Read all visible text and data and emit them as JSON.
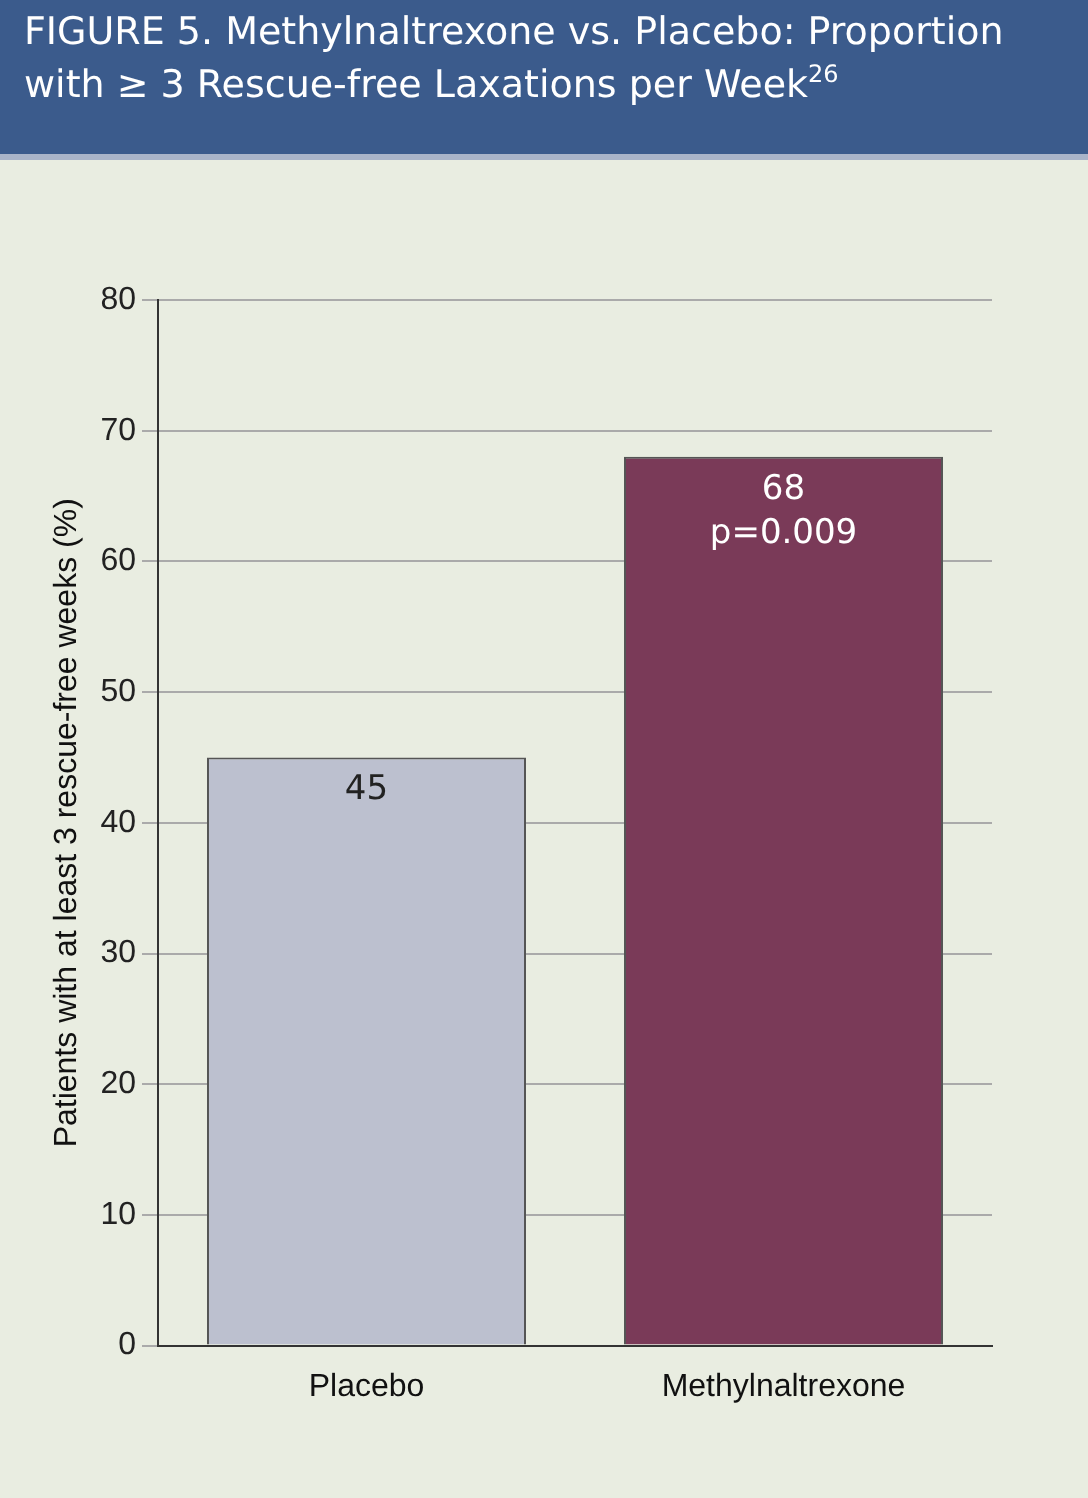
{
  "chart_data": {
    "type": "bar",
    "title": "FIGURE 5. Methylnaltrexone vs. Placebo: Proportion with ≥ 3 Rescue-free Laxations per Week$^{26}$",
    "ylabel": "Patients with at least 3 rescue-free weeks (%)",
    "categories": [
      "Placebo",
      "Methylnaltrexone"
    ],
    "values": [
      45,
      68
    ],
    "colors": [
      "#bcc0cf",
      "#7a3a58"
    ],
    "ylim": [
      0,
      80
    ],
    "yticks": [
      0,
      10,
      20,
      30,
      40,
      50,
      60,
      70,
      80
    ],
    "grid": "y",
    "legend": false,
    "data_labels": true,
    "annotations": [
      {
        "text": "p=0.009",
        "x": "Methylnaltrexone",
        "y": 68
      }
    ]
  }
}
